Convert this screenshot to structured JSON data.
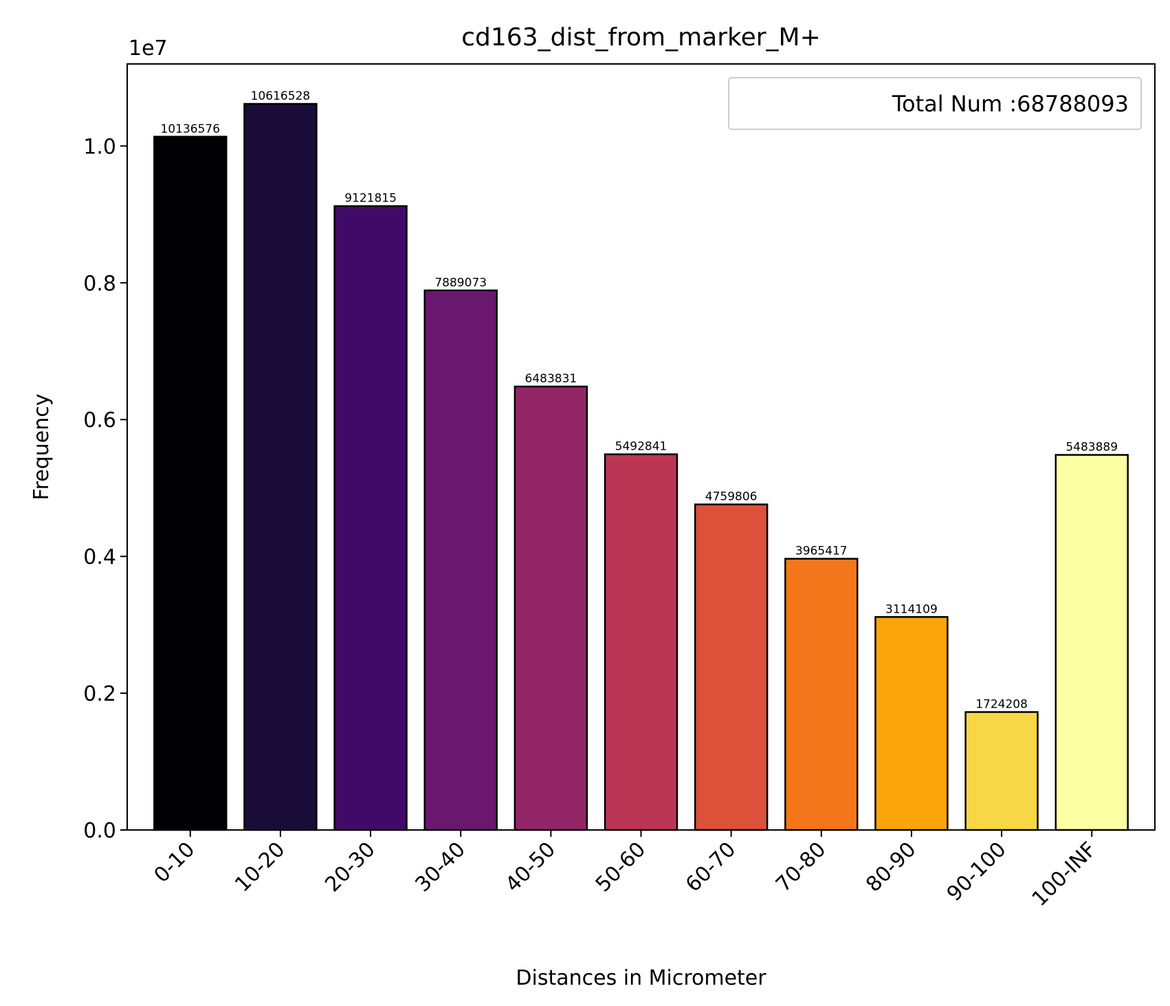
{
  "chart_data": {
    "type": "bar",
    "title": "cd163_dist_from_marker_M+",
    "xlabel": "Distances in Micrometer",
    "ylabel": "Frequency",
    "y_exponent_label": "1e7",
    "y_scale": 10000000,
    "ylim": [
      0,
      11200000
    ],
    "y_ticks": [
      0,
      2000000,
      4000000,
      6000000,
      8000000,
      10000000
    ],
    "y_tick_labels": [
      "0.0",
      "0.2",
      "0.4",
      "0.6",
      "0.8",
      "1.0"
    ],
    "categories": [
      "0-10",
      "10-20",
      "20-30",
      "30-40",
      "40-50",
      "50-60",
      "60-70",
      "70-80",
      "80-90",
      "90-100",
      "100-INF"
    ],
    "values": [
      10136576,
      10616528,
      9121815,
      7889073,
      6483831,
      5492841,
      4759806,
      3965417,
      3114109,
      1724208,
      5483889
    ],
    "value_labels": [
      "10136576",
      "10616528",
      "9121815",
      "7889073",
      "6483831",
      "5492841",
      "4759806",
      "3965417",
      "3114109",
      "1724208",
      "5483889"
    ],
    "colors": [
      "#000004",
      "#190c37",
      "#420a68",
      "#6a176e",
      "#932667",
      "#bb3654",
      "#dd513a",
      "#f3771a",
      "#fca50a",
      "#f6d746",
      "#fcffa4"
    ],
    "legend": {
      "text": "Total Num :68788093",
      "placement": "top-right"
    },
    "grid": false
  }
}
